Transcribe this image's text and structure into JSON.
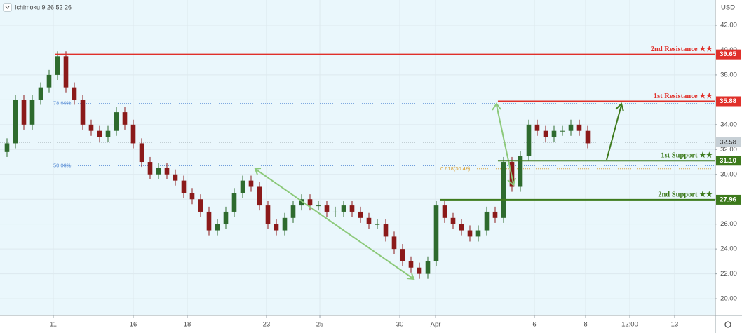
{
  "chart_data": {
    "type": "candlestick",
    "indicator": "Ichimoku 9 26 52 26",
    "currency": "USD",
    "up_color": "#2e6b2e",
    "down_color": "#8b1a1a",
    "grid": true,
    "xlim": [
      -0.833,
      84.167
    ],
    "ylim": [
      18.65,
      44.03
    ],
    "yticks": [
      {
        "value": 20,
        "label": "20.00"
      },
      {
        "value": 22,
        "label": "22.00"
      },
      {
        "value": 24,
        "label": "24.00"
      },
      {
        "value": 26,
        "label": "26.00"
      },
      {
        "value": 28,
        "label": "28.00"
      },
      {
        "value": 30,
        "label": "30.00"
      },
      {
        "value": 32,
        "label": "32.00"
      },
      {
        "value": 34,
        "label": "34.00"
      },
      {
        "value": 36,
        "label": "36.00"
      },
      {
        "value": 38,
        "label": "38.00"
      },
      {
        "value": 40,
        "label": "40.00"
      },
      {
        "value": 42,
        "label": "42.00"
      }
    ],
    "xticks": [
      {
        "value": 5.5,
        "label": "11"
      },
      {
        "value": 15,
        "label": "16"
      },
      {
        "value": 21.42,
        "label": "18"
      },
      {
        "value": 30.83,
        "label": "23"
      },
      {
        "value": 37.17,
        "label": "25"
      },
      {
        "value": 46.67,
        "label": "30"
      },
      {
        "value": 50.92,
        "label": "Apr"
      },
      {
        "value": 62.67,
        "label": "6"
      },
      {
        "value": 68.75,
        "label": "8"
      },
      {
        "value": 74,
        "label": "12:00"
      },
      {
        "value": 79.33,
        "label": "13"
      }
    ],
    "x": [
      0,
      1,
      2,
      3,
      4,
      5,
      6,
      7,
      8,
      9,
      10,
      11,
      12,
      13,
      14,
      15,
      16,
      17,
      18,
      19,
      20,
      21,
      22,
      23,
      24,
      25,
      26,
      27,
      28,
      29,
      30,
      31,
      32,
      33,
      34,
      35,
      36,
      37,
      38,
      39,
      40,
      41,
      42,
      43,
      44,
      45,
      46,
      47,
      48,
      49,
      50,
      51,
      52,
      53,
      54,
      55,
      56,
      57,
      58,
      59,
      60,
      61,
      62,
      63,
      64,
      65,
      66,
      67,
      68,
      69
    ],
    "candles": [
      [
        31.8,
        32.9,
        31.4,
        32.5
      ],
      [
        32.5,
        36.4,
        32.1,
        36
      ],
      [
        36,
        36.4,
        33.6,
        34
      ],
      [
        34,
        36.4,
        33.6,
        36
      ],
      [
        36,
        37.4,
        35.6,
        37
      ],
      [
        37,
        38.4,
        36.6,
        38
      ],
      [
        38,
        39.9,
        37.6,
        39.5
      ],
      [
        39.5,
        39.9,
        36.6,
        37
      ],
      [
        37,
        37.4,
        35.6,
        36
      ],
      [
        36,
        36.4,
        33.6,
        34
      ],
      [
        34,
        34.4,
        33.1,
        33.5
      ],
      [
        33.5,
        33.9,
        32.6,
        33
      ],
      [
        33,
        33.9,
        32.6,
        33.5
      ],
      [
        33.5,
        35.4,
        33.1,
        35
      ],
      [
        35,
        35.4,
        33.6,
        34
      ],
      [
        34,
        34.4,
        32.1,
        32.5
      ],
      [
        32.5,
        32.9,
        30.6,
        31
      ],
      [
        31,
        31.4,
        29.6,
        30
      ],
      [
        30,
        30.9,
        29.6,
        30.5
      ],
      [
        30.5,
        30.9,
        29.6,
        30
      ],
      [
        30,
        30.4,
        29.1,
        29.5
      ],
      [
        29.5,
        29.9,
        28.1,
        28.5
      ],
      [
        28.5,
        28.9,
        27.6,
        28
      ],
      [
        28,
        28.4,
        26.6,
        27
      ],
      [
        27,
        27.4,
        25.1,
        25.5
      ],
      [
        25.5,
        26.4,
        25.1,
        26
      ],
      [
        26,
        27.4,
        25.6,
        27
      ],
      [
        27,
        28.9,
        26.6,
        28.5
      ],
      [
        28.5,
        29.9,
        28.1,
        29.5
      ],
      [
        29.5,
        29.9,
        28.6,
        29
      ],
      [
        29,
        29.4,
        27.1,
        27.5
      ],
      [
        27.5,
        27.9,
        25.6,
        26
      ],
      [
        26,
        26.4,
        25.1,
        25.5
      ],
      [
        25.5,
        26.9,
        25.1,
        26.5
      ],
      [
        26.5,
        27.9,
        26.1,
        27.5
      ],
      [
        27.5,
        28.4,
        27.1,
        28
      ],
      [
        28,
        28.4,
        27.1,
        27.5
      ],
      [
        27.5,
        27.9,
        27.1,
        27.5
      ],
      [
        27.5,
        27.9,
        26.6,
        27
      ],
      [
        27,
        27.4,
        26.6,
        27
      ],
      [
        27,
        27.9,
        26.6,
        27.5
      ],
      [
        27.5,
        27.9,
        26.6,
        27
      ],
      [
        27,
        27.4,
        26.1,
        26.5
      ],
      [
        26.5,
        26.9,
        25.6,
        26
      ],
      [
        26,
        26.4,
        25.6,
        26
      ],
      [
        26,
        26.4,
        24.6,
        25
      ],
      [
        25,
        25.4,
        23.6,
        24
      ],
      [
        24,
        24.4,
        22.6,
        23
      ],
      [
        23,
        23.4,
        22.1,
        22.5
      ],
      [
        22.5,
        22.9,
        21.6,
        22
      ],
      [
        22,
        23.4,
        21.6,
        23
      ],
      [
        23,
        27.9,
        22.6,
        27.5
      ],
      [
        27.5,
        27.9,
        26.1,
        26.5
      ],
      [
        26.5,
        26.9,
        25.6,
        26
      ],
      [
        26,
        26.4,
        25.1,
        25.5
      ],
      [
        25.5,
        25.9,
        24.6,
        25
      ],
      [
        25,
        25.9,
        24.6,
        25.5
      ],
      [
        25.5,
        27.4,
        25.1,
        27
      ],
      [
        27,
        27.4,
        26.1,
        26.5
      ],
      [
        26.5,
        31.4,
        26.1,
        31
      ],
      [
        31,
        31.4,
        28.6,
        29
      ],
      [
        29,
        31.9,
        28.6,
        31.5
      ],
      [
        31.5,
        34.4,
        31.1,
        34
      ],
      [
        34,
        34.4,
        33.1,
        33.5
      ],
      [
        33.5,
        33.9,
        32.6,
        33
      ],
      [
        33,
        33.9,
        32.6,
        33.5
      ],
      [
        33.5,
        33.9,
        33.1,
        33.5
      ],
      [
        33.5,
        34.4,
        33.1,
        34
      ],
      [
        34,
        34.4,
        33.1,
        33.5
      ],
      [
        33.5,
        33.9,
        32.1,
        32.5
      ]
    ],
    "levels": [
      {
        "name": "2nd Resistance ★★",
        "value": 39.65,
        "value_label": "39.65",
        "x_start": 5.67,
        "color": "#e0302a"
      },
      {
        "name": "1st Resistance ★★",
        "value": 35.88,
        "value_label": "35.88",
        "x_start": 58.33,
        "color": "#e0302a"
      },
      {
        "name": "1st Support ★★",
        "value": 31.1,
        "value_label": "31.10",
        "x_start": 58.33,
        "color": "#3d7a1c"
      },
      {
        "name": "2nd Support ★★",
        "value": 27.96,
        "value_label": "27.96",
        "x_start": 51.5,
        "color": "#3d7a1c"
      }
    ],
    "current_price": {
      "value": 32.58,
      "value_label": "32.58",
      "color": "#c7d0d6"
    },
    "fib_levels": [
      {
        "label": "78.60%",
        "value": 35.7,
        "x_start": 4.5,
        "color": "#5b8fd6"
      },
      {
        "label": "50.00%",
        "value": 30.7,
        "x_start": 4.5,
        "color": "#5b8fd6"
      },
      {
        "label": "0.618(30.45)",
        "value": 30.45,
        "x_start": 50.5,
        "color": "#d9a441"
      }
    ]
  }
}
